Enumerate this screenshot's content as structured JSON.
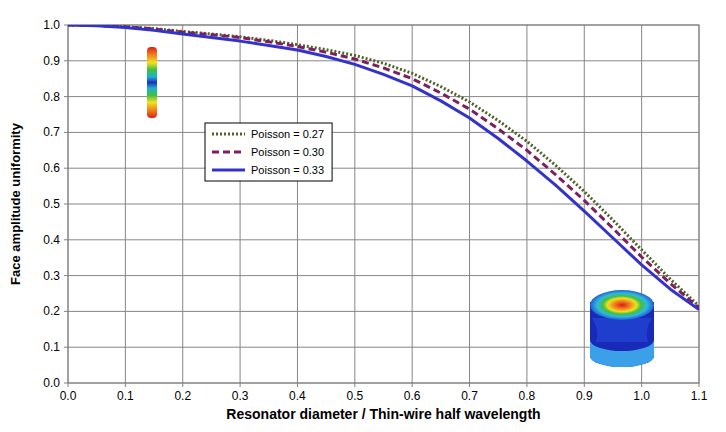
{
  "chart_data": {
    "type": "line",
    "x_label": "Resonator diameter / Thin-wire half wavelength",
    "y_label": "Face amplitude uniformity",
    "x": [
      0,
      0.05,
      0.1,
      0.15,
      0.2,
      0.25,
      0.3,
      0.35,
      0.4,
      0.45,
      0.5,
      0.55,
      0.6,
      0.65,
      0.7,
      0.75,
      0.8,
      0.85,
      0.9,
      0.95,
      1.0,
      1.05,
      1.1
    ],
    "series": [
      {
        "name": "Poisson = 0.27",
        "color": "#4f6228",
        "line_style": "dotted",
        "values": [
          1.0,
          0.999,
          0.995,
          0.99,
          0.982,
          0.975,
          0.967,
          0.957,
          0.945,
          0.931,
          0.915,
          0.893,
          0.865,
          0.828,
          0.785,
          0.733,
          0.675,
          0.608,
          0.535,
          0.455,
          0.372,
          0.29,
          0.215
        ]
      },
      {
        "name": "Poisson = 0.30",
        "color": "#7f1f5f",
        "line_style": "dashed",
        "values": [
          1.0,
          0.999,
          0.995,
          0.989,
          0.98,
          0.973,
          0.965,
          0.953,
          0.94,
          0.924,
          0.905,
          0.88,
          0.85,
          0.81,
          0.765,
          0.71,
          0.65,
          0.582,
          0.51,
          0.432,
          0.352,
          0.278,
          0.21
        ]
      },
      {
        "name": "Poisson = 0.33",
        "color": "#3333cc",
        "line_style": "solid",
        "values": [
          1.0,
          0.998,
          0.993,
          0.985,
          0.975,
          0.965,
          0.955,
          0.943,
          0.93,
          0.912,
          0.89,
          0.862,
          0.83,
          0.788,
          0.74,
          0.683,
          0.62,
          0.553,
          0.48,
          0.405,
          0.33,
          0.262,
          0.205
        ]
      }
    ],
    "xlim": [
      0,
      1.1
    ],
    "xticks": [
      {
        "value": 0,
        "label": "0.0"
      },
      0.1,
      0.2,
      0.3,
      0.4,
      0.5,
      0.6,
      0.7,
      0.8,
      0.9,
      {
        "value": 1,
        "label": "1.0"
      },
      1.1
    ],
    "ylim": [
      0,
      1
    ],
    "yticks": [
      {
        "value": 0,
        "label": "0.0"
      },
      0.1,
      0.2,
      0.3,
      0.4,
      0.5,
      0.6,
      0.7,
      0.8,
      0.9,
      {
        "value": 1,
        "label": "1.0"
      }
    ],
    "grid": true,
    "legend": "center left"
  }
}
